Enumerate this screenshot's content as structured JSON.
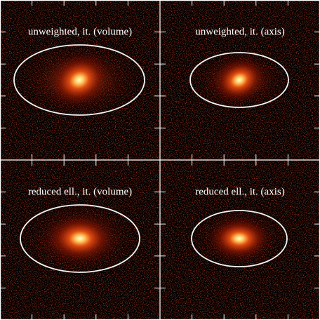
{
  "panels": [
    {
      "label": "unweighted,  it. (volume)"
    },
    {
      "label": "unweighted,  it. (axis)"
    },
    {
      "label": "reduced ell.,  it. (volume)"
    },
    {
      "label": "reduced ell.,  it. (axis)"
    }
  ]
}
